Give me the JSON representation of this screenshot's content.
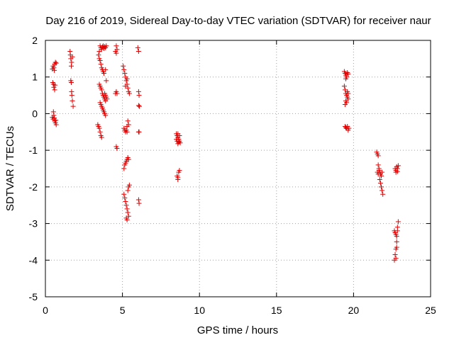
{
  "chart_data": {
    "type": "scatter",
    "title": "Day 216 of 2019, Sidereal Day-to-day VTEC variation (SDTVAR) for receiver naur",
    "xlabel": "GPS time / hours",
    "ylabel": "SDTVAR / TECUs",
    "xlim": [
      0,
      25
    ],
    "ylim": [
      -5,
      2
    ],
    "xticks": [
      0,
      5,
      10,
      15,
      20,
      25
    ],
    "yticks": [
      -5,
      -4,
      -3,
      -2,
      -1,
      0,
      1,
      2
    ],
    "grid": true,
    "marker": "plus",
    "color": "#e00000",
    "series": [
      {
        "name": "SDTVAR",
        "points": [
          [
            0.45,
            1.22
          ],
          [
            0.5,
            1.3
          ],
          [
            0.55,
            1.25
          ],
          [
            0.6,
            1.35
          ],
          [
            0.65,
            1.4
          ],
          [
            0.7,
            1.38
          ],
          [
            0.58,
            1.18
          ],
          [
            0.48,
            0.85
          ],
          [
            0.52,
            0.8
          ],
          [
            0.55,
            0.72
          ],
          [
            0.6,
            0.65
          ],
          [
            0.62,
            0.78
          ],
          [
            0.45,
            -0.1
          ],
          [
            0.5,
            -0.15
          ],
          [
            0.55,
            -0.05
          ],
          [
            0.6,
            -0.2
          ],
          [
            0.65,
            -0.25
          ],
          [
            0.7,
            -0.3
          ],
          [
            0.52,
            0.05
          ],
          [
            0.58,
            -0.12
          ],
          [
            0.68,
            -0.18
          ],
          [
            1.6,
            1.7
          ],
          [
            1.62,
            1.6
          ],
          [
            1.65,
            1.5
          ],
          [
            1.7,
            1.4
          ],
          [
            1.75,
            1.55
          ],
          [
            1.68,
            1.3
          ],
          [
            1.65,
            0.9
          ],
          [
            1.68,
            0.85
          ],
          [
            1.7,
            0.6
          ],
          [
            1.72,
            0.5
          ],
          [
            1.75,
            0.35
          ],
          [
            1.8,
            0.2
          ],
          [
            3.4,
            -0.3
          ],
          [
            3.45,
            -0.35
          ],
          [
            3.5,
            -0.4
          ],
          [
            3.55,
            -0.5
          ],
          [
            3.6,
            -0.6
          ],
          [
            3.65,
            -0.65
          ],
          [
            3.45,
            1.6
          ],
          [
            3.5,
            1.7
          ],
          [
            3.55,
            1.85
          ],
          [
            3.6,
            1.8
          ],
          [
            3.65,
            1.75
          ],
          [
            3.7,
            1.82
          ],
          [
            3.75,
            1.85
          ],
          [
            3.8,
            1.78
          ],
          [
            3.85,
            1.83
          ],
          [
            3.9,
            1.8
          ],
          [
            3.95,
            1.85
          ],
          [
            3.5,
            1.5
          ],
          [
            3.55,
            1.45
          ],
          [
            3.6,
            1.35
          ],
          [
            3.65,
            1.25
          ],
          [
            3.7,
            1.2
          ],
          [
            3.75,
            1.15
          ],
          [
            3.8,
            1.1
          ],
          [
            3.5,
            0.8
          ],
          [
            3.55,
            0.75
          ],
          [
            3.6,
            0.7
          ],
          [
            3.65,
            0.65
          ],
          [
            3.7,
            0.55
          ],
          [
            3.75,
            0.5
          ],
          [
            3.8,
            0.45
          ],
          [
            3.85,
            0.4
          ],
          [
            3.9,
            0.35
          ],
          [
            3.55,
            0.3
          ],
          [
            3.6,
            0.25
          ],
          [
            3.65,
            0.2
          ],
          [
            3.7,
            0.15
          ],
          [
            3.75,
            0.1
          ],
          [
            3.8,
            0.05
          ],
          [
            3.85,
            0.0
          ],
          [
            3.9,
            -0.05
          ],
          [
            3.85,
            0.55
          ],
          [
            3.9,
            0.5
          ],
          [
            3.95,
            0.45
          ],
          [
            4.0,
            0.4
          ],
          [
            3.95,
            0.9
          ],
          [
            3.9,
            1.2
          ],
          [
            4.6,
            1.85
          ],
          [
            4.65,
            1.75
          ],
          [
            4.6,
            1.65
          ],
          [
            4.55,
            1.7
          ],
          [
            4.55,
            0.55
          ],
          [
            4.6,
            0.6
          ],
          [
            4.65,
            0.55
          ],
          [
            4.6,
            -0.9
          ],
          [
            4.65,
            -0.95
          ],
          [
            5.05,
            1.3
          ],
          [
            5.1,
            1.2
          ],
          [
            5.15,
            1.1
          ],
          [
            5.2,
            1.0
          ],
          [
            5.25,
            0.9
          ],
          [
            5.3,
            0.8
          ],
          [
            5.35,
            0.7
          ],
          [
            5.4,
            0.6
          ],
          [
            5.45,
            0.55
          ],
          [
            5.3,
            0.95
          ],
          [
            5.2,
            0.75
          ],
          [
            5.1,
            -0.4
          ],
          [
            5.15,
            -0.45
          ],
          [
            5.2,
            -0.5
          ],
          [
            5.25,
            -0.45
          ],
          [
            5.3,
            -0.35
          ],
          [
            5.35,
            -0.2
          ],
          [
            5.4,
            -0.3
          ],
          [
            5.3,
            -0.5
          ],
          [
            5.1,
            -1.5
          ],
          [
            5.15,
            -1.4
          ],
          [
            5.2,
            -1.35
          ],
          [
            5.25,
            -1.3
          ],
          [
            5.3,
            -1.25
          ],
          [
            5.35,
            -1.2
          ],
          [
            5.4,
            -1.25
          ],
          [
            5.1,
            -2.2
          ],
          [
            5.15,
            -2.3
          ],
          [
            5.2,
            -2.4
          ],
          [
            5.25,
            -2.5
          ],
          [
            5.3,
            -2.6
          ],
          [
            5.35,
            -2.7
          ],
          [
            5.4,
            -2.8
          ],
          [
            5.3,
            -2.9
          ],
          [
            5.25,
            -2.85
          ],
          [
            5.4,
            -2.0
          ],
          [
            5.45,
            -1.95
          ],
          [
            5.35,
            -2.1
          ],
          [
            6.0,
            1.8
          ],
          [
            6.05,
            1.7
          ],
          [
            6.05,
            0.6
          ],
          [
            6.08,
            0.5
          ],
          [
            6.05,
            0.22
          ],
          [
            6.1,
            0.2
          ],
          [
            6.05,
            -0.5
          ],
          [
            6.08,
            -0.5
          ],
          [
            6.05,
            -2.35
          ],
          [
            6.08,
            -2.45
          ],
          [
            8.5,
            -0.55
          ],
          [
            8.55,
            -0.6
          ],
          [
            8.6,
            -0.65
          ],
          [
            8.65,
            -0.7
          ],
          [
            8.7,
            -0.75
          ],
          [
            8.75,
            -0.8
          ],
          [
            8.55,
            -0.75
          ],
          [
            8.6,
            -0.82
          ],
          [
            8.65,
            -0.78
          ],
          [
            8.7,
            -0.6
          ],
          [
            8.5,
            -0.7
          ],
          [
            8.6,
            -0.55
          ],
          [
            8.55,
            -1.7
          ],
          [
            8.6,
            -1.75
          ],
          [
            8.65,
            -1.6
          ],
          [
            8.7,
            -1.55
          ],
          [
            8.6,
            -1.8
          ],
          [
            19.4,
            1.15
          ],
          [
            19.45,
            1.1
          ],
          [
            19.5,
            1.05
          ],
          [
            19.55,
            1.0
          ],
          [
            19.6,
            1.12
          ],
          [
            19.65,
            1.08
          ],
          [
            19.5,
            0.95
          ],
          [
            19.4,
            0.75
          ],
          [
            19.45,
            0.65
          ],
          [
            19.5,
            0.55
          ],
          [
            19.55,
            0.5
          ],
          [
            19.6,
            0.45
          ],
          [
            19.65,
            0.4
          ],
          [
            19.5,
            0.35
          ],
          [
            19.55,
            0.3
          ],
          [
            19.6,
            0.6
          ],
          [
            19.65,
            0.55
          ],
          [
            19.45,
            0.25
          ],
          [
            19.45,
            -0.35
          ],
          [
            19.5,
            -0.38
          ],
          [
            19.55,
            -0.4
          ],
          [
            19.6,
            -0.35
          ],
          [
            19.65,
            -0.45
          ],
          [
            19.7,
            -0.4
          ],
          [
            21.5,
            -1.05
          ],
          [
            21.55,
            -1.1
          ],
          [
            21.6,
            -1.15
          ],
          [
            21.6,
            -1.4
          ],
          [
            21.65,
            -1.55
          ],
          [
            21.7,
            -1.6
          ],
          [
            21.75,
            -1.65
          ],
          [
            21.8,
            -1.7
          ],
          [
            21.55,
            -1.6
          ],
          [
            21.6,
            -1.65
          ],
          [
            21.7,
            -1.8
          ],
          [
            21.75,
            -1.9
          ],
          [
            21.8,
            -2.0
          ],
          [
            21.85,
            -2.1
          ],
          [
            21.9,
            -2.2
          ],
          [
            21.65,
            -1.5
          ],
          [
            21.85,
            -1.6
          ],
          [
            22.7,
            -1.5
          ],
          [
            22.75,
            -1.55
          ],
          [
            22.8,
            -1.45
          ],
          [
            22.85,
            -1.5
          ],
          [
            22.9,
            -1.42
          ],
          [
            22.75,
            -1.6
          ],
          [
            22.85,
            -1.58
          ],
          [
            22.65,
            -3.2
          ],
          [
            22.7,
            -3.25
          ],
          [
            22.75,
            -3.3
          ],
          [
            22.8,
            -3.35
          ],
          [
            22.85,
            -3.1
          ],
          [
            22.9,
            -2.95
          ],
          [
            22.8,
            -3.5
          ],
          [
            22.75,
            -3.7
          ],
          [
            22.7,
            -3.85
          ],
          [
            22.65,
            -4.0
          ],
          [
            22.75,
            -3.95
          ],
          [
            22.8,
            -3.65
          ],
          [
            22.85,
            -3.2
          ]
        ]
      }
    ]
  }
}
